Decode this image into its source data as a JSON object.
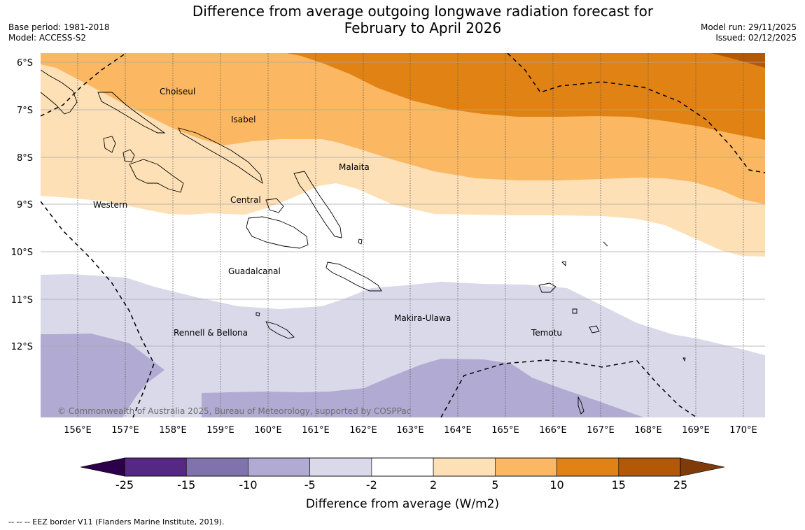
{
  "title": {
    "line1": "Difference from average outgoing longwave radiation forecast for",
    "line2": "February to April 2026"
  },
  "meta": {
    "base_period": "Base period: 1981-2018",
    "model": "Model: ACCESS-S2",
    "model_run": "Model run: 29/11/2025",
    "issued": "Issued: 02/12/2025"
  },
  "map": {
    "latitude_labels": [
      "6°S",
      "7°S",
      "8°S",
      "9°S",
      "10°S",
      "11°S",
      "12°S"
    ],
    "longitude_labels": [
      "156°E",
      "157°E",
      "158°E",
      "159°E",
      "160°E",
      "161°E",
      "162°E",
      "163°E",
      "164°E",
      "165°E",
      "166°E",
      "167°E",
      "168°E",
      "169°E",
      "170°E"
    ],
    "provinces": [
      "Choiseul",
      "Isabel",
      "Malaita",
      "Western",
      "Central",
      "Guadalcanal",
      "Makira-Ulawa",
      "Rennell & Bellona",
      "Temotu"
    ],
    "copyright": "© Commonwealth of Australia 2025, Bureau of Meteorology, supported by COSPPac"
  },
  "colorbar": {
    "ticks": [
      "-25",
      "-15",
      "-10",
      "-5",
      "-2",
      "2",
      "5",
      "10",
      "15",
      "25"
    ],
    "colors": [
      "#552983",
      "#8072ac",
      "#b1aad2",
      "#d9d9ea",
      "#ffffff",
      "#fee0b6",
      "#fbb761",
      "#e08214",
      "#b35807"
    ],
    "under_color": "#2d004b",
    "over_color": "#7f3b08",
    "label": "Difference from average (W/m2)"
  },
  "footnote": "--  --  -- EEZ border V11 (Flanders Marine Institute, 2019)."
}
